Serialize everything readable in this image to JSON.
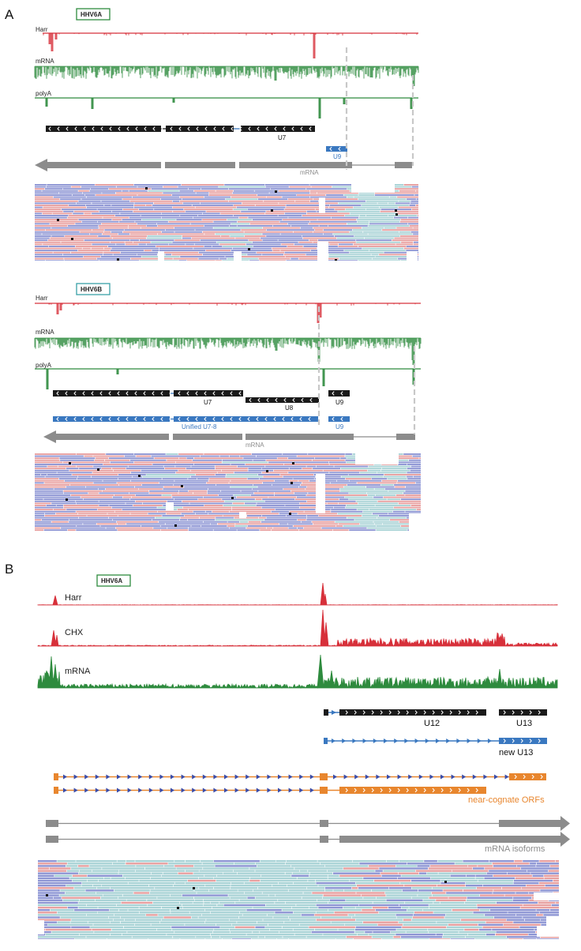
{
  "panel_a": {
    "letter": "A",
    "blocks": [
      {
        "virus": "HHV6A",
        "tracks": [
          "Harr",
          "mRNA",
          "polyA"
        ],
        "genes": [
          "U7",
          "U9"
        ],
        "mrna_label": "mRNA"
      },
      {
        "virus": "HHV6B",
        "tracks": [
          "Harr",
          "mRNA",
          "polyA"
        ],
        "genes": [
          "U7",
          "U8",
          "U9"
        ],
        "blue_genes": [
          "Unified U7-8",
          "U9"
        ],
        "mrna_label": "mRNA"
      }
    ]
  },
  "panel_b": {
    "letter": "B",
    "virus": "HHV6A",
    "tracks": [
      "Harr",
      "CHX",
      "mRNA"
    ],
    "genes": [
      "U12",
      "U13"
    ],
    "new_gene": "new U13",
    "orf_label": "near-cognate ORFs",
    "isoform_label": "mRNA isoforms"
  },
  "colors": {
    "harr": "#d7303a",
    "mrna": "#2e8b3e",
    "gene_black": "#1a1a1a",
    "gene_blue": "#3a78c0",
    "orf_orange": "#e8862e",
    "transcript_gray": "#8c8c8c",
    "read_blue": "#8e96d4",
    "read_pink": "#e8a0a0",
    "read_teal": "#a9d3d6",
    "badge_green_border": "#2e8b3e",
    "badge_teal_border": "#3aa0a8"
  }
}
